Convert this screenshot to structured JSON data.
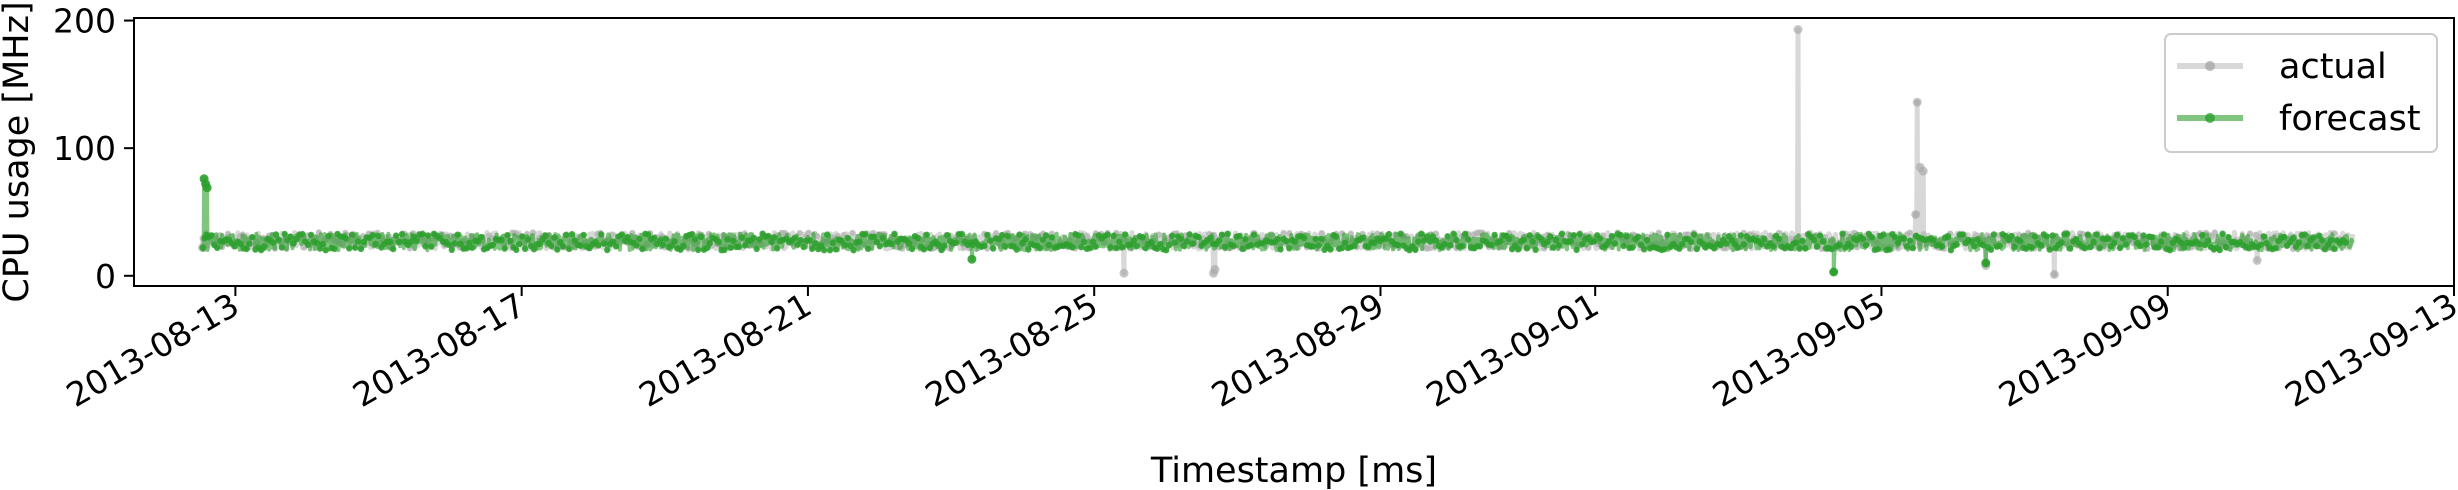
{
  "chart_data": {
    "type": "line",
    "title": "",
    "xlabel": "Timestamp [ms]",
    "ylabel": "CPU usage [MHz]",
    "x_tick_labels": [
      "2013-08-13",
      "2013-08-17",
      "2013-08-21",
      "2013-08-25",
      "2013-08-29",
      "2013-09-01",
      "2013-09-05",
      "2013-09-09",
      "2013-09-13"
    ],
    "y_ticks": [
      0,
      100,
      200
    ],
    "y_tick_labels": [
      "0",
      "100",
      "200"
    ],
    "xlim": [
      "2013-08-11T14:00",
      "2013-09-13T00:00"
    ],
    "ylim": [
      -8,
      202
    ],
    "grid": false,
    "legend_position": "top-right",
    "x_start": "2013-08-12T13:00",
    "x_end": "2013-09-11T14:00",
    "series": [
      {
        "name": "actual",
        "color": "#a9a9a9",
        "baseline": 27,
        "band": [
          21,
          34
        ],
        "spikes": [
          {
            "x": "2013-08-12T13:00",
            "y": 22
          },
          {
            "x": "2013-08-25T10:00",
            "y": 2
          },
          {
            "x": "2013-08-26T16:00",
            "y": 2
          },
          {
            "x": "2013-08-26T16:30",
            "y": 5
          },
          {
            "x": "2013-09-03T20:00",
            "y": 193
          },
          {
            "x": "2013-09-05T12:00",
            "y": 136
          },
          {
            "x": "2013-09-05T13:00",
            "y": 85
          },
          {
            "x": "2013-09-05T14:00",
            "y": 82
          },
          {
            "x": "2013-09-05T11:30",
            "y": 48
          },
          {
            "x": "2013-09-06T11:00",
            "y": 8
          },
          {
            "x": "2013-09-07T10:00",
            "y": 1
          },
          {
            "x": "2013-09-10T06:00",
            "y": 12
          }
        ]
      },
      {
        "name": "forecast",
        "color": "#2ca02c",
        "baseline": 27,
        "band": [
          20,
          33
        ],
        "spikes": [
          {
            "x": "2013-08-12T13:30",
            "y": 76
          },
          {
            "x": "2013-08-12T14:00",
            "y": 72
          },
          {
            "x": "2013-08-12T14:30",
            "y": 69
          },
          {
            "x": "2013-09-04T08:00",
            "y": 3
          },
          {
            "x": "2013-09-06T11:00",
            "y": 10
          },
          {
            "x": "2013-08-23T07:00",
            "y": 13
          }
        ]
      }
    ]
  }
}
